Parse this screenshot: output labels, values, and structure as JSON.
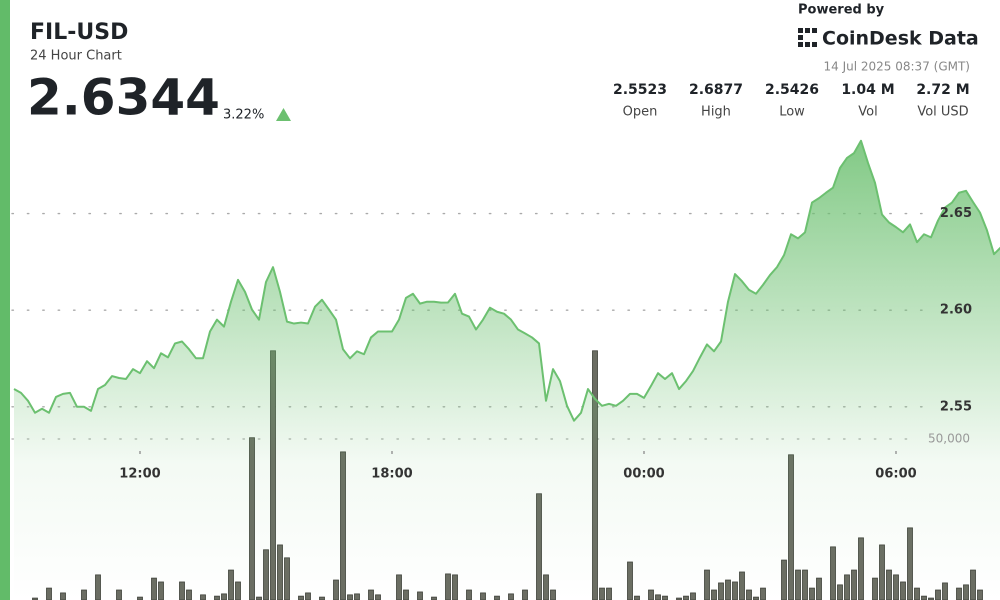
{
  "header": {
    "symbol": "FIL-USD",
    "subtitle": "24 Hour Chart",
    "price": "2.6344",
    "change": "3.22%",
    "powered_by": "Powered by",
    "brand": "CoinDesk Data",
    "timestamp": "14 Jul 2025 08:37 (GMT)",
    "stats": [
      {
        "value": "2.5523",
        "label": "Open"
      },
      {
        "value": "2.6877",
        "label": "High"
      },
      {
        "value": "2.5426",
        "label": "Low"
      },
      {
        "value": "1.04 M",
        "label": "Vol"
      },
      {
        "value": "2.72 M",
        "label": "Vol USD"
      }
    ]
  },
  "chart_data": {
    "type": "line",
    "x": [
      "09:00",
      "09:10",
      "09:20",
      "09:30",
      "09:40",
      "09:50",
      "10:00",
      "10:10",
      "10:20",
      "10:30",
      "10:40",
      "10:50",
      "11:00",
      "11:10",
      "11:20",
      "11:30",
      "11:40",
      "11:50",
      "12:00",
      "12:10",
      "12:20",
      "12:30",
      "12:40",
      "12:50",
      "13:00",
      "13:10",
      "13:20",
      "13:30",
      "13:40",
      "13:50",
      "14:00",
      "14:10",
      "14:20",
      "14:30",
      "14:40",
      "14:50",
      "15:00",
      "15:10",
      "15:20",
      "15:30",
      "15:40",
      "15:50",
      "16:00",
      "16:10",
      "16:20",
      "16:30",
      "16:40",
      "16:50",
      "17:00",
      "17:10",
      "17:20",
      "17:30",
      "17:40",
      "17:50",
      "18:00",
      "18:10",
      "18:20",
      "18:30",
      "18:40",
      "18:50",
      "19:00",
      "19:10",
      "19:20",
      "19:30",
      "19:40",
      "19:50",
      "20:00",
      "20:10",
      "20:20",
      "20:30",
      "20:40",
      "20:50",
      "21:00",
      "21:10",
      "21:20",
      "21:30",
      "21:40",
      "21:50",
      "22:00",
      "22:10",
      "22:20",
      "22:30",
      "22:40",
      "22:50",
      "23:00",
      "23:10",
      "23:20",
      "23:30",
      "23:40",
      "23:50",
      "00:00",
      "00:10",
      "00:20",
      "00:30",
      "00:40",
      "00:50",
      "01:00",
      "01:10",
      "01:20",
      "01:30",
      "01:40",
      "01:50",
      "02:00",
      "02:10",
      "02:20",
      "02:30",
      "02:40",
      "02:50",
      "03:00",
      "03:10",
      "03:20",
      "03:30",
      "03:40",
      "03:50",
      "04:00",
      "04:10",
      "04:20",
      "04:30",
      "04:40",
      "04:50",
      "05:00",
      "05:10",
      "05:20",
      "05:30",
      "05:40",
      "05:50",
      "06:00",
      "06:10",
      "06:20",
      "06:30",
      "06:40",
      "06:50",
      "07:00",
      "07:10",
      "07:20",
      "07:30",
      "07:40",
      "07:50",
      "08:00",
      "08:10",
      "08:20",
      "08:30"
    ],
    "series": [
      {
        "type": "line",
        "axis": "y",
        "color": "#6cc070",
        "values": [
          2.5592,
          2.5572,
          2.5531,
          2.5469,
          2.549,
          2.5469,
          2.5551,
          2.5567,
          2.5572,
          2.55,
          2.55,
          2.5479,
          2.5592,
          2.5613,
          2.5659,
          2.5649,
          2.5644,
          2.5695,
          2.5674,
          2.5736,
          2.57,
          2.5777,
          2.5756,
          2.5828,
          2.5838,
          2.5798,
          2.5751,
          2.5751,
          2.589,
          2.5951,
          2.5915,
          2.6044,
          2.6157,
          2.6095,
          2.6003,
          2.5951,
          2.6146,
          2.6223,
          2.6095,
          2.5941,
          2.5931,
          2.5936,
          2.5931,
          2.6018,
          2.6054,
          2.6003,
          2.5951,
          2.5798,
          2.5751,
          2.5787,
          2.5772,
          2.5859,
          2.589,
          2.589,
          2.589,
          2.5951,
          2.6064,
          2.6085,
          2.6034,
          2.6044,
          2.6044,
          2.6039,
          2.604,
          2.6085,
          2.5982,
          2.5967,
          2.59,
          2.5951,
          2.6013,
          2.5992,
          2.5982,
          2.5951,
          2.59,
          2.588,
          2.5859,
          2.5828,
          2.5531,
          2.5695,
          2.5633,
          2.5505,
          2.5428,
          2.5469,
          2.5592,
          2.5541,
          2.5505,
          2.5515,
          2.5505,
          2.5531,
          2.5567,
          2.5567,
          2.5546,
          2.5608,
          2.5674,
          2.5644,
          2.5674,
          2.5592,
          2.5633,
          2.5685,
          2.5756,
          2.5823,
          2.5787,
          2.5838,
          2.6044,
          2.6187,
          2.615,
          2.6105,
          2.6085,
          2.6131,
          2.6182,
          2.6223,
          2.6285,
          2.6393,
          2.6372,
          2.6403,
          2.6557,
          2.658,
          2.6608,
          2.6634,
          2.6736,
          2.6788,
          2.6813,
          2.6877,
          2.6762,
          2.6659,
          2.6495,
          2.6454,
          2.643,
          2.6403,
          2.6444,
          2.6352,
          2.6393,
          2.6377,
          2.6464,
          2.6531,
          2.6557,
          2.6608,
          2.6618,
          2.656,
          2.6505,
          2.6413,
          2.629,
          2.6326
        ]
      },
      {
        "type": "bar",
        "axis": "y2",
        "color": "#6b6d63",
        "values": [
          0,
          0,
          0,
          600,
          0,
          3700,
          0,
          2200,
          0,
          0,
          3100,
          0,
          7800,
          0,
          0,
          3100,
          0,
          0,
          900,
          0,
          6800,
          5600,
          0,
          0,
          5600,
          3100,
          0,
          1600,
          0,
          1200,
          1900,
          9300,
          5600,
          0,
          50400,
          900,
          15600,
          77400,
          17100,
          13100,
          0,
          1200,
          2200,
          0,
          900,
          0,
          6200,
          46000,
          1600,
          1900,
          0,
          3100,
          1600,
          0,
          0,
          7800,
          3100,
          0,
          2500,
          0,
          900,
          0,
          8100,
          7800,
          0,
          3100,
          0,
          2200,
          0,
          1200,
          0,
          1900,
          0,
          3100,
          0,
          33000,
          7800,
          3100,
          0,
          0,
          0,
          0,
          0,
          77400,
          3700,
          3700,
          0,
          0,
          11800,
          1200,
          0,
          3100,
          1600,
          1200,
          0,
          600,
          1200,
          2200,
          0,
          9300,
          3100,
          5300,
          6200,
          5600,
          8700,
          3100,
          900,
          3700,
          0,
          0,
          12400,
          45100,
          9300,
          9300,
          3700,
          6800,
          0,
          16500,
          4700,
          7800,
          9300,
          19300,
          0,
          6800,
          17100,
          9300,
          7800,
          5600,
          22400,
          3700,
          1200,
          600,
          3100,
          5300,
          0,
          3700,
          4700,
          9300,
          3100,
          0,
          0,
          0
        ]
      }
    ],
    "xticks": [
      "12:00",
      "18:00",
      "00:00",
      "06:00"
    ],
    "ylim": [
      2.45,
      2.7
    ],
    "yticks": [
      2.55,
      {
        "value": 2.6,
        "label": "2.60"
      },
      2.65
    ],
    "y2lim": [
      0,
      150000
    ],
    "y2ticks": [
      {
        "value": 50000,
        "label": "50,000"
      }
    ],
    "grid": true
  }
}
